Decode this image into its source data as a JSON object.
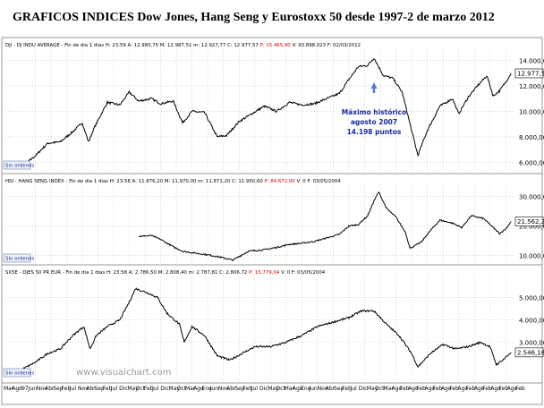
{
  "title": "GRAFICOS INDICES Dow Jones, Hang Seng y Eurostoxx 50  desde 1997-2 de marzo 2012",
  "watermark": "www.visualchart.com",
  "colors": {
    "line": "#000000",
    "grid": "#bfbfbf",
    "red": "#d40000",
    "blue": "#1a2a9c",
    "panel_bg": "#ffffff",
    "frame": "#9a9a9a"
  },
  "x_axis": {
    "labels": [
      "Mar",
      "Ago",
      "'97",
      "Jun",
      "Nov",
      "Abr",
      "Sep",
      "Feb",
      "Jul",
      "Nov",
      "Abr",
      "Sep",
      "Feb",
      "Jul",
      "Dic",
      "May",
      "Oct",
      "Feb",
      "Jul",
      "Dic",
      "May",
      "Oct",
      "Mar",
      "Ago",
      "Ene",
      "Jun",
      "Nov",
      "Abr",
      "Sep",
      "Feb",
      "Jul",
      "Dic",
      "May",
      "Oct",
      "Mar",
      "Ago",
      "Ene",
      "Jun",
      "Nov",
      "Abr",
      "Sep",
      "Feb",
      "Jul",
      "Dic",
      "May",
      "Oct",
      "Mar",
      "Ago",
      "Feb",
      "Ago",
      "Feb",
      "Ago",
      "Feb",
      "Ago",
      "Feb",
      "Ago",
      "Feb",
      "Ago",
      "Feb",
      "Ago",
      "Feb",
      "Ago",
      "Feb"
    ]
  },
  "panels": [
    {
      "id": "dji",
      "header_black": "DJI - DJ INDU AVERAGE - Fin de dia 1 dias H: 23:59  A: 12.980,75  M: 12.987,51  m: 12.927,77  C: 12.977,57",
      "header_red": "P: 15.465,90",
      "header_black2": "V: 93.898.023  F: 02/03/2012",
      "last_value": "12.977,57",
      "button": "Sin ordenes",
      "annotation": {
        "lines": [
          "Máximo histórico",
          "agosto 2007",
          "14.198 puntos"
        ]
      }
    },
    {
      "id": "hsi",
      "header_black": "HSI - HANG SENG INDEX - Fin de dia 1 dias H: 23:58  A: 11.876,20  M: 11.970,00  m: 11.871,20  C: 11.950,60",
      "header_red": "P: 84.672,00",
      "header_black2": "V: 0  F: 03/05/2004",
      "last_value": "21.562,26",
      "button": "Sin ordenes"
    },
    {
      "id": "sx5e",
      "header_black": "SX5E - DJES 50 PR EUR - Fin de dia 1 dias H: 23:58  A: 2.786,50  M: 2.808,40  m: 2.787,81  C: 2.806,72",
      "header_red": "P: 15.779,04",
      "header_black2": "V: 0  F: 03/05/2004",
      "last_value": "2.546,18",
      "button": "Sin ordenes"
    }
  ],
  "chart_data": [
    {
      "type": "line",
      "name": "DJI - DJ INDU AVERAGE",
      "x": [
        1996.2,
        1996.6,
        1997.0,
        1997.4,
        1997.8,
        1998.2,
        1998.5,
        1998.7,
        1998.9,
        1999.3,
        1999.7,
        2000.0,
        2000.3,
        2000.7,
        2001.0,
        2001.4,
        2001.7,
        2002.0,
        2002.4,
        2002.8,
        2003.1,
        2003.5,
        2003.9,
        2004.3,
        2004.7,
        2005.1,
        2005.5,
        2005.9,
        2006.3,
        2006.7,
        2007.0,
        2007.3,
        2007.6,
        2007.8,
        2008.1,
        2008.4,
        2008.7,
        2009.0,
        2009.2,
        2009.5,
        2009.9,
        2010.3,
        2010.5,
        2010.8,
        2011.1,
        2011.4,
        2011.6,
        2011.8,
        2012.0,
        2012.17
      ],
      "y": [
        5600,
        5700,
        6500,
        7500,
        7600,
        8400,
        9100,
        7600,
        8800,
        10700,
        10500,
        11500,
        10800,
        11000,
        10600,
        10800,
        9100,
        10000,
        9900,
        8000,
        8100,
        9200,
        9800,
        10400,
        10000,
        10700,
        10500,
        10600,
        11000,
        11400,
        12500,
        13500,
        13600,
        14198,
        12800,
        12600,
        11500,
        8500,
        6547,
        8500,
        10400,
        11000,
        9800,
        11100,
        12000,
        12800,
        11200,
        11600,
        12300,
        12977
      ],
      "y_ticks": [
        6000,
        8000,
        10000,
        12000,
        14000
      ],
      "ylim": [
        5400,
        14800
      ]
    },
    {
      "type": "line",
      "name": "HSI - HANG SENG INDEX",
      "x": [
        2000.3,
        2000.7,
        2001.0,
        2001.4,
        2001.7,
        2002.0,
        2002.5,
        2002.9,
        2003.3,
        2003.8,
        2004.3,
        2004.7,
        2005.1,
        2005.5,
        2005.9,
        2006.3,
        2006.7,
        2007.0,
        2007.3,
        2007.6,
        2007.8,
        2007.95,
        2008.2,
        2008.5,
        2008.8,
        2008.95,
        2009.3,
        2009.6,
        2009.9,
        2010.3,
        2010.6,
        2010.9,
        2011.3,
        2011.6,
        2011.8,
        2012.0,
        2012.17
      ],
      "y": [
        16500,
        16800,
        15500,
        13000,
        11500,
        11000,
        10300,
        9500,
        8500,
        11500,
        12000,
        12800,
        13800,
        14200,
        14800,
        16000,
        17200,
        20000,
        20500,
        23500,
        28500,
        31500,
        26000,
        23000,
        18000,
        12500,
        14500,
        18500,
        22000,
        21000,
        19500,
        23500,
        22500,
        19500,
        17500,
        19000,
        21562
      ],
      "y_ticks": [
        10000,
        20000,
        30000
      ],
      "ylim": [
        7500,
        33500
      ]
    },
    {
      "type": "line",
      "name": "SX5E - DJES 50 PR EUR",
      "x": [
        1996.2,
        1996.6,
        1997.0,
        1997.4,
        1997.8,
        1998.2,
        1998.55,
        1998.75,
        1998.95,
        1999.3,
        1999.7,
        2000.0,
        2000.2,
        2000.6,
        2000.9,
        2001.2,
        2001.6,
        2001.75,
        2002.0,
        2002.4,
        2002.8,
        2003.2,
        2003.6,
        2004.0,
        2004.5,
        2005.0,
        2005.5,
        2006.0,
        2006.5,
        2007.0,
        2007.4,
        2007.8,
        2008.2,
        2008.6,
        2009.0,
        2009.2,
        2009.6,
        2010.0,
        2010.4,
        2010.8,
        2011.2,
        2011.5,
        2011.7,
        2011.9,
        2012.17
      ],
      "y": [
        1700,
        1800,
        2100,
        2500,
        2700,
        3300,
        3700,
        2700,
        3300,
        3700,
        4000,
        4800,
        5400,
        5200,
        5000,
        4300,
        3800,
        3000,
        3700,
        3300,
        2400,
        2200,
        2500,
        2800,
        2800,
        3000,
        3300,
        3700,
        3900,
        4100,
        4400,
        4400,
        3800,
        3300,
        2500,
        1900,
        2500,
        2900,
        2700,
        2800,
        3000,
        2800,
        2000,
        2200,
        2546
      ],
      "y_ticks": [
        3000,
        4000,
        5000
      ],
      "ylim": [
        1300,
        5900
      ]
    }
  ]
}
